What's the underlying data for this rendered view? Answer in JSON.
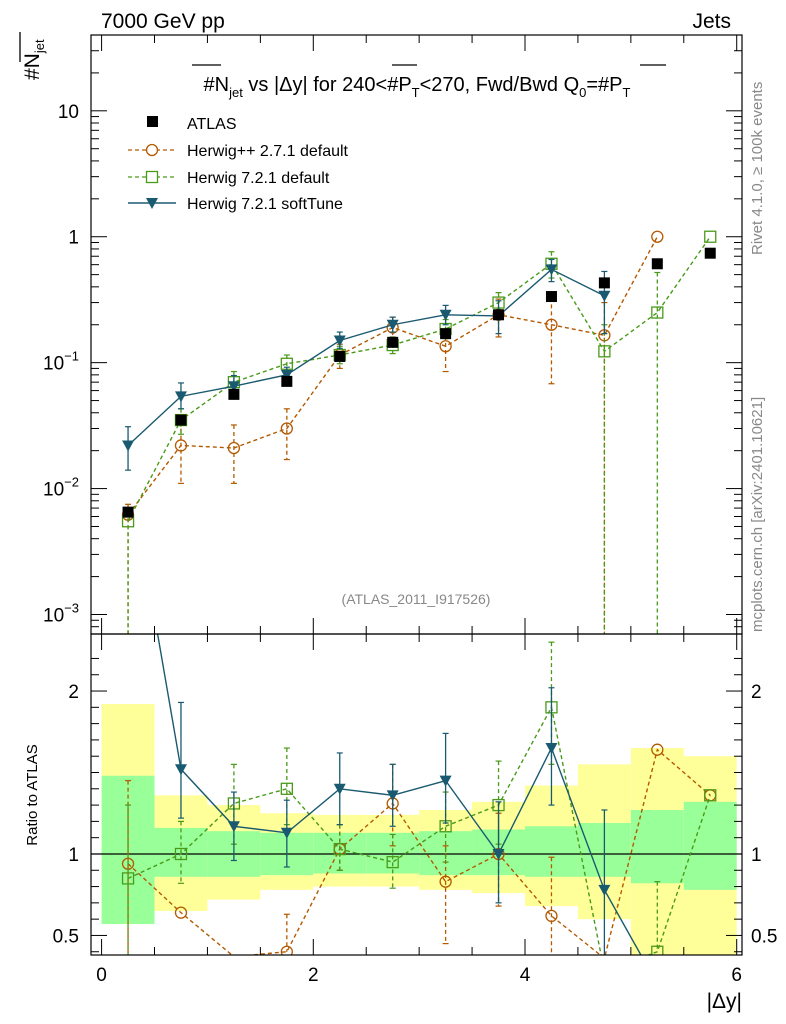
{
  "header": {
    "left": "7000 GeV pp",
    "right": "Jets"
  },
  "side_labels": {
    "rivet": "Rivet 4.1.0, ≥ 100k events",
    "mcplots": "mcplots.cern.ch [arXiv:2401.10621]"
  },
  "colors": {
    "atlas": "#000000",
    "herwigpp": "#b35900",
    "herwig721": "#4a9a1a",
    "softtune": "#1a5a70",
    "band_inner": "#99ff99",
    "band_outer": "#ffff99"
  },
  "chart_data": [
    {
      "type": "scatter",
      "title": {
        "prefix": "#N",
        "sub_jet": "jet",
        "mid": " vs |Δy| for 240<#P",
        "sub_T": "T",
        "mid2": "<270, Fwd/Bwd Q",
        "sub_0": "0",
        "suffix": "=#P",
        "sub_T2": "T"
      },
      "ylabel": {
        "main": "#N",
        "sub": "jet"
      },
      "xlabel": "|Δy|",
      "yscale": "log",
      "ylim": [
        0.0007,
        40
      ],
      "xlim": [
        -0.1,
        6.05
      ],
      "yticks": [
        {
          "v": 0.001,
          "base": "10",
          "exp": "−3"
        },
        {
          "v": 0.01,
          "base": "10",
          "exp": "−2"
        },
        {
          "v": 0.1,
          "base": "10",
          "exp": "−1"
        },
        {
          "v": 1,
          "base": "1",
          "exp": ""
        },
        {
          "v": 10,
          "base": "10",
          "exp": ""
        }
      ],
      "watermark": "(ATLAS_2011_I917526)",
      "series": [
        {
          "name": "ATLAS",
          "key": "atlas",
          "marker": "square-filled",
          "x": [
            0.25,
            0.75,
            1.25,
            1.75,
            2.25,
            2.75,
            3.25,
            3.75,
            4.25,
            4.75,
            5.25,
            5.75
          ],
          "y": [
            0.0065,
            0.035,
            0.056,
            0.071,
            0.112,
            0.145,
            0.17,
            0.24,
            0.335,
            0.43,
            0.61,
            0.74
          ]
        },
        {
          "name": "Herwig++ 2.7.1 default",
          "key": "herwigpp",
          "marker": "circle-open",
          "dashed": true,
          "x": [
            0.25,
            0.75,
            1.25,
            1.75,
            2.25,
            2.75,
            3.25,
            3.75,
            4.25,
            4.75,
            5.25
          ],
          "y": [
            0.0062,
            0.022,
            0.021,
            0.03,
            0.115,
            0.19,
            0.135,
            0.24,
            0.2,
            0.165,
            1.0
          ],
          "ylo": [
            0.0002,
            0.011,
            0.011,
            0.017,
            0.09,
            0.15,
            0.085,
            0.16,
            0.068,
            0.0002,
            null
          ],
          "yhi": [
            0.0075,
            0.034,
            0.032,
            0.043,
            0.14,
            0.23,
            0.185,
            0.32,
            0.33,
            0.3,
            null
          ]
        },
        {
          "name": "Herwig 7.2.1 default",
          "key": "herwig721",
          "marker": "square-open",
          "dashed": true,
          "x": [
            0.25,
            0.75,
            1.25,
            1.75,
            2.25,
            2.75,
            3.25,
            3.75,
            4.25,
            4.75,
            5.25,
            5.75
          ],
          "y": [
            0.0055,
            0.035,
            0.07,
            0.098,
            0.115,
            0.138,
            0.185,
            0.3,
            0.61,
            0.123,
            0.25,
            1.0
          ],
          "ylo": [
            0.0002,
            0.027,
            0.057,
            0.082,
            0.098,
            0.118,
            0.155,
            0.25,
            0.47,
            0.0002,
            0.0002,
            null
          ],
          "yhi": [
            0.0066,
            0.043,
            0.085,
            0.115,
            0.135,
            0.16,
            0.22,
            0.36,
            0.76,
            0.2,
            0.52,
            null
          ]
        },
        {
          "name": "Herwig 7.2.1 softTune",
          "key": "softtune",
          "marker": "triangle-down",
          "dashed": false,
          "x": [
            0.25,
            0.75,
            1.25,
            1.75,
            2.25,
            2.75,
            3.25,
            3.75,
            4.25,
            4.75
          ],
          "y": [
            0.022,
            0.054,
            0.065,
            0.08,
            0.15,
            0.2,
            0.24,
            0.235,
            0.55,
            0.34
          ],
          "ylo": [
            0.014,
            0.043,
            0.054,
            0.069,
            0.13,
            0.175,
            0.2,
            0.17,
            0.44,
            0.17
          ],
          "yhi": [
            0.031,
            0.069,
            0.079,
            0.092,
            0.175,
            0.23,
            0.285,
            0.31,
            0.66,
            0.53
          ]
        }
      ]
    },
    {
      "type": "line",
      "ylabel": "Ratio to ATLAS",
      "xlabel": "|Δy|",
      "ylim": [
        0.38,
        2.35
      ],
      "xlim": [
        -0.1,
        6.05
      ],
      "yticks": [
        0.5,
        1,
        2
      ],
      "xticks": [
        0,
        2,
        4,
        6
      ],
      "bands": {
        "edges": [
          0,
          0.5,
          1.0,
          1.5,
          2.0,
          2.5,
          3.0,
          3.5,
          4.0,
          4.5,
          5.0,
          5.5,
          6.0
        ],
        "inner_lo": [
          0.57,
          0.86,
          0.86,
          0.87,
          0.88,
          0.88,
          0.87,
          0.87,
          0.86,
          0.86,
          0.82,
          0.78
        ],
        "inner_hi": [
          1.48,
          1.16,
          1.14,
          1.13,
          1.13,
          1.13,
          1.14,
          1.15,
          1.17,
          1.19,
          1.27,
          1.32
        ],
        "outer_lo": [
          0.57,
          0.65,
          0.72,
          0.78,
          0.8,
          0.8,
          0.78,
          0.76,
          0.68,
          0.6,
          0.38,
          0.38
        ],
        "outer_hi": [
          1.92,
          1.36,
          1.3,
          1.25,
          1.24,
          1.24,
          1.27,
          1.32,
          1.42,
          1.55,
          1.65,
          1.6
        ]
      },
      "series": [
        {
          "name": "Herwig++ 2.7.1 default",
          "key": "herwigpp",
          "marker": "circle-open",
          "dashed": true,
          "x": [
            0.25,
            0.75,
            1.25,
            1.75,
            2.25,
            2.75,
            3.25,
            3.75,
            4.25,
            4.75,
            5.25,
            5.75
          ],
          "y": [
            0.94,
            0.64,
            0.37,
            0.4,
            1.03,
            1.31,
            0.83,
            1.0,
            0.62,
            0.36,
            1.64,
            1.36
          ],
          "ylo": [
            0.38,
            null,
            null,
            null,
            0.9,
            1.05,
            0.45,
            0.68,
            0.38,
            null,
            null,
            null
          ],
          "yhi": [
            1.45,
            null,
            null,
            0.63,
            1.18,
            1.55,
            1.05,
            1.25,
            0.98,
            null,
            null,
            null
          ]
        },
        {
          "name": "Herwig 7.2.1 default",
          "key": "herwig721",
          "marker": "square-open",
          "dashed": true,
          "x": [
            0.25,
            0.75,
            1.25,
            1.75,
            2.25,
            2.75,
            3.25,
            3.75,
            4.25,
            4.75,
            5.25,
            5.75
          ],
          "y": [
            0.85,
            1.0,
            1.31,
            1.4,
            1.03,
            0.95,
            1.17,
            1.3,
            1.9,
            0.28,
            0.4,
            1.36
          ],
          "ylo": [
            0.38,
            0.82,
            1.06,
            1.18,
            0.9,
            0.79,
            0.95,
            1.06,
            1.55,
            null,
            null,
            null
          ],
          "yhi": [
            1.3,
            1.2,
            1.55,
            1.65,
            1.18,
            1.12,
            1.38,
            1.57,
            2.3,
            null,
            0.83,
            null
          ]
        },
        {
          "name": "Herwig 7.2.1 softTune",
          "key": "softtune",
          "marker": "triangle-down",
          "dashed": false,
          "x": [
            0.25,
            0.75,
            1.25,
            1.75,
            2.25,
            2.75,
            3.25,
            3.75,
            4.25,
            4.75,
            5.25
          ],
          "y": [
            3.4,
            1.52,
            1.17,
            1.13,
            1.4,
            1.36,
            1.45,
            1.0,
            1.65,
            0.78,
            0.2
          ],
          "ylo": [
            null,
            1.22,
            0.96,
            0.92,
            1.18,
            1.17,
            1.19,
            0.7,
            1.3,
            0.38,
            null
          ],
          "yhi": [
            null,
            1.93,
            1.38,
            1.33,
            1.62,
            1.55,
            1.74,
            1.32,
            2.02,
            1.27,
            null
          ]
        }
      ]
    }
  ]
}
